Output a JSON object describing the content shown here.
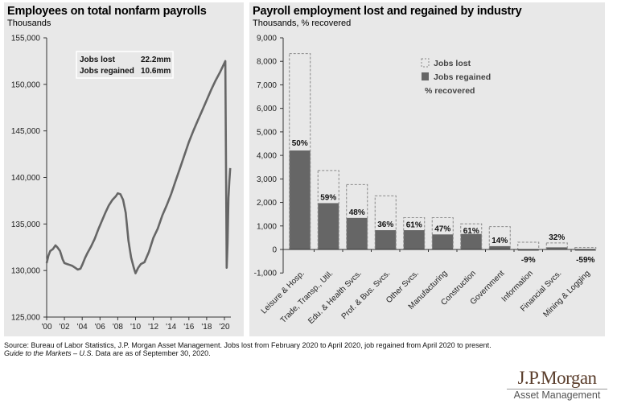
{
  "chart_data": [
    {
      "type": "line",
      "title": "Employees on total nonfarm payrolls",
      "subtitle": "Thousands",
      "xlabel": "",
      "ylabel": "",
      "ylim": [
        125000,
        155000
      ],
      "yticks": [
        125000,
        130000,
        135000,
        140000,
        145000,
        150000,
        155000
      ],
      "ytick_labels": [
        "125,000",
        "130,000",
        "135,000",
        "140,000",
        "145,000",
        "150,000",
        "155,000"
      ],
      "xlim": [
        2000,
        2021
      ],
      "xticks": [
        2000,
        2002,
        2004,
        2006,
        2008,
        2010,
        2012,
        2014,
        2016,
        2018,
        2020
      ],
      "xtick_labels": [
        "'00",
        "'02",
        "'04",
        "'06",
        "'08",
        "'10",
        "'12",
        "'14",
        "'16",
        "'18",
        "'20"
      ],
      "grid": false,
      "series": [
        {
          "name": "Total nonfarm payrolls",
          "color": "#666666",
          "x": [
            2000.0,
            2000.2,
            2000.4,
            2000.7,
            2001.0,
            2001.2,
            2001.5,
            2001.8,
            2002.0,
            2002.3,
            2002.6,
            2002.9,
            2003.2,
            2003.5,
            2003.8,
            2004.0,
            2004.3,
            2004.6,
            2005.0,
            2005.4,
            2005.8,
            2006.2,
            2006.6,
            2007.0,
            2007.4,
            2007.8,
            2008.0,
            2008.3,
            2008.6,
            2008.9,
            2009.2,
            2009.5,
            2009.8,
            2010.0,
            2010.3,
            2010.6,
            2011.0,
            2011.5,
            2012.0,
            2012.5,
            2013.0,
            2013.5,
            2014.0,
            2014.5,
            2015.0,
            2015.5,
            2016.0,
            2016.5,
            2017.0,
            2017.5,
            2018.0,
            2018.5,
            2019.0,
            2019.5,
            2020.0,
            2020.1,
            2020.25,
            2020.35,
            2020.45,
            2020.55,
            2020.65
          ],
          "values": [
            130800,
            131600,
            132100,
            132300,
            132700,
            132500,
            132100,
            131200,
            130800,
            130700,
            130600,
            130500,
            130300,
            130100,
            130200,
            130600,
            131300,
            131900,
            132600,
            133400,
            134400,
            135300,
            136200,
            137000,
            137600,
            138000,
            138300,
            138200,
            137600,
            136200,
            133200,
            131400,
            130300,
            129700,
            130300,
            130700,
            130900,
            132000,
            133500,
            134500,
            135900,
            137000,
            138200,
            139600,
            141000,
            142400,
            143800,
            145000,
            146100,
            147200,
            148300,
            149400,
            150400,
            151300,
            152300,
            152500,
            130300,
            133000,
            137800,
            139600,
            141000
          ]
        }
      ],
      "annotations": [
        {
          "label": "Jobs lost",
          "value": "22.2mm"
        },
        {
          "label": "Jobs regained",
          "value": "10.6mm"
        }
      ]
    },
    {
      "type": "bar",
      "title": "Payroll employment lost and regained by industry",
      "subtitle": "Thousands, % recovered",
      "xlabel": "",
      "ylabel": "",
      "ylim": [
        -1000,
        9000
      ],
      "yticks": [
        -1000,
        0,
        1000,
        2000,
        3000,
        4000,
        5000,
        6000,
        7000,
        8000,
        9000
      ],
      "ytick_labels": [
        "-1,000",
        "0",
        "1,000",
        "2,000",
        "3,000",
        "4,000",
        "5,000",
        "6,000",
        "7,000",
        "8,000",
        "9,000"
      ],
      "grid": false,
      "legend_position": "top-right",
      "legend": [
        {
          "name": "Jobs lost",
          "style": "dashed-outline"
        },
        {
          "name": "Jobs regained",
          "style": "solid",
          "color": "#666666"
        },
        {
          "name": "% recovered",
          "style": "text"
        }
      ],
      "categories": [
        "Leisure & Hosp.",
        "Trade, Transp., Util.",
        "Edu. & Health Svcs.",
        "Prof. & Bus. Svcs.",
        "Other Svcs.",
        "Manufacturing",
        "Construction",
        "Government",
        "Information",
        "Financial Svcs.",
        "Mining & Logging"
      ],
      "series": [
        {
          "name": "Jobs lost",
          "values": [
            8330,
            3360,
            2760,
            2280,
            1350,
            1350,
            1090,
            970,
            310,
            280,
            80
          ]
        },
        {
          "name": "Jobs regained",
          "color": "#666666",
          "values": [
            4210,
            1970,
            1340,
            820,
            820,
            640,
            660,
            140,
            -30,
            90,
            -50
          ]
        }
      ],
      "pct_recovered": [
        "50%",
        "59%",
        "48%",
        "36%",
        "61%",
        "47%",
        "61%",
        "14%",
        "-9%",
        "32%",
        "-59%"
      ]
    }
  ],
  "footnote": {
    "source": "Source: Bureau of Labor Statistics, J.P. Morgan Asset Management. Jobs lost from February  2020 to April 2020, job regained from  April 2020 to present.",
    "guide_italic": "Guide to the Markets – U.S.",
    "date_text": " Data are as of September 30, 2020."
  },
  "logo": {
    "main": "J.P.Morgan",
    "sub": "Asset Management"
  }
}
